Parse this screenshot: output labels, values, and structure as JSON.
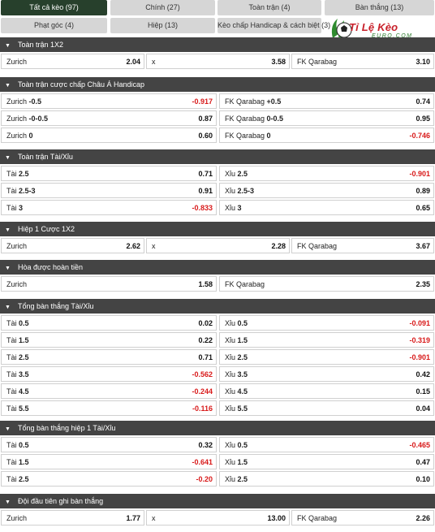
{
  "tabs": [
    {
      "label": "Tất cả kèo (97)",
      "active": true
    },
    {
      "label": "Chính (27)",
      "active": false
    },
    {
      "label": "Toàn trận (4)",
      "active": false
    },
    {
      "label": "Bàn thắng (13)",
      "active": false
    },
    {
      "label": "Phạt góc (4)",
      "active": false
    },
    {
      "label": "Hiệp (13)",
      "active": false
    },
    {
      "label": "Kèo chấp Handicap & cách biệt (3)",
      "active": false
    }
  ],
  "logo": {
    "brand": "Tỉ Lệ Kèo",
    "sub": "EURO.COM"
  },
  "sections": [
    {
      "title": "Toàn trận 1X2",
      "layout": "three",
      "rows": [
        [
          {
            "label": "Zurich",
            "bold": "",
            "value": "2.04",
            "neg": false
          },
          {
            "label": "x",
            "bold": "",
            "value": "3.58",
            "neg": false
          },
          {
            "label": "FK Qarabag",
            "bold": "",
            "value": "3.10",
            "neg": false
          }
        ]
      ]
    },
    {
      "title": "Toàn trận cược chấp Châu Á Handicap",
      "layout": "two",
      "rows": [
        [
          {
            "label": "Zurich",
            "bold": "-0.5",
            "value": "-0.917",
            "neg": true
          },
          {
            "label": "FK Qarabag",
            "bold": "+0.5",
            "value": "0.74",
            "neg": false
          }
        ],
        [
          {
            "label": "Zurich",
            "bold": "-0-0.5",
            "value": "0.87",
            "neg": false
          },
          {
            "label": "FK Qarabag",
            "bold": "0-0.5",
            "value": "0.95",
            "neg": false
          }
        ],
        [
          {
            "label": "Zurich",
            "bold": "0",
            "value": "0.60",
            "neg": false
          },
          {
            "label": "FK Qarabag",
            "bold": "0",
            "value": "-0.746",
            "neg": true
          }
        ]
      ]
    },
    {
      "title": "Toàn trận Tài/Xỉu",
      "layout": "two",
      "rows": [
        [
          {
            "label": "Tài",
            "bold": "2.5",
            "value": "0.71",
            "neg": false
          },
          {
            "label": "Xỉu",
            "bold": "2.5",
            "value": "-0.901",
            "neg": true
          }
        ],
        [
          {
            "label": "Tài",
            "bold": "2.5-3",
            "value": "0.91",
            "neg": false
          },
          {
            "label": "Xỉu",
            "bold": "2.5-3",
            "value": "0.89",
            "neg": false
          }
        ],
        [
          {
            "label": "Tài",
            "bold": "3",
            "value": "-0.833",
            "neg": true
          },
          {
            "label": "Xỉu",
            "bold": "3",
            "value": "0.65",
            "neg": false
          }
        ]
      ]
    },
    {
      "title": "Hiệp 1 Cược 1X2",
      "layout": "three",
      "rows": [
        [
          {
            "label": "Zurich",
            "bold": "",
            "value": "2.62",
            "neg": false
          },
          {
            "label": "x",
            "bold": "",
            "value": "2.28",
            "neg": false
          },
          {
            "label": "FK Qarabag",
            "bold": "",
            "value": "3.67",
            "neg": false
          }
        ]
      ]
    },
    {
      "title": "Hòa được hoàn tiền",
      "layout": "two",
      "rows": [
        [
          {
            "label": "Zurich",
            "bold": "",
            "value": "1.58",
            "neg": false
          },
          {
            "label": "FK Qarabag",
            "bold": "",
            "value": "2.35",
            "neg": false
          }
        ]
      ]
    },
    {
      "title": "Tổng bàn thắng Tài/Xỉu",
      "layout": "two",
      "rows": [
        [
          {
            "label": "Tài",
            "bold": "0.5",
            "value": "0.02",
            "neg": false
          },
          {
            "label": "Xỉu",
            "bold": "0.5",
            "value": "-0.091",
            "neg": true
          }
        ],
        [
          {
            "label": "Tài",
            "bold": "1.5",
            "value": "0.22",
            "neg": false
          },
          {
            "label": "Xỉu",
            "bold": "1.5",
            "value": "-0.319",
            "neg": true
          }
        ],
        [
          {
            "label": "Tài",
            "bold": "2.5",
            "value": "0.71",
            "neg": false
          },
          {
            "label": "Xỉu",
            "bold": "2.5",
            "value": "-0.901",
            "neg": true
          }
        ],
        [
          {
            "label": "Tài",
            "bold": "3.5",
            "value": "-0.562",
            "neg": true
          },
          {
            "label": "Xỉu",
            "bold": "3.5",
            "value": "0.42",
            "neg": false
          }
        ],
        [
          {
            "label": "Tài",
            "bold": "4.5",
            "value": "-0.244",
            "neg": true
          },
          {
            "label": "Xỉu",
            "bold": "4.5",
            "value": "0.15",
            "neg": false
          }
        ],
        [
          {
            "label": "Tài",
            "bold": "5.5",
            "value": "-0.116",
            "neg": true
          },
          {
            "label": "Xỉu",
            "bold": "5.5",
            "value": "0.04",
            "neg": false
          }
        ]
      ]
    },
    {
      "title": "Tổng bàn thắng hiệp 1 Tài/Xỉu",
      "layout": "two",
      "rows": [
        [
          {
            "label": "Tài",
            "bold": "0.5",
            "value": "0.32",
            "neg": false
          },
          {
            "label": "Xỉu",
            "bold": "0.5",
            "value": "-0.465",
            "neg": true
          }
        ],
        [
          {
            "label": "Tài",
            "bold": "1.5",
            "value": "-0.641",
            "neg": true
          },
          {
            "label": "Xỉu",
            "bold": "1.5",
            "value": "0.47",
            "neg": false
          }
        ],
        [
          {
            "label": "Tài",
            "bold": "2.5",
            "value": "-0.20",
            "neg": true
          },
          {
            "label": "Xỉu",
            "bold": "2.5",
            "value": "0.10",
            "neg": false
          }
        ]
      ]
    },
    {
      "title": "Đội đầu tiên ghi bàn thắng",
      "layout": "three",
      "rows": [
        [
          {
            "label": "Zurich",
            "bold": "",
            "value": "1.77",
            "neg": false
          },
          {
            "label": "x",
            "bold": "",
            "value": "13.00",
            "neg": false
          },
          {
            "label": "FK Qarabag",
            "bold": "",
            "value": "2.26",
            "neg": false
          }
        ]
      ]
    }
  ],
  "colors": {
    "header_bg": "#444444",
    "active_tab": "#27402c",
    "negative": "#d81a1a"
  }
}
